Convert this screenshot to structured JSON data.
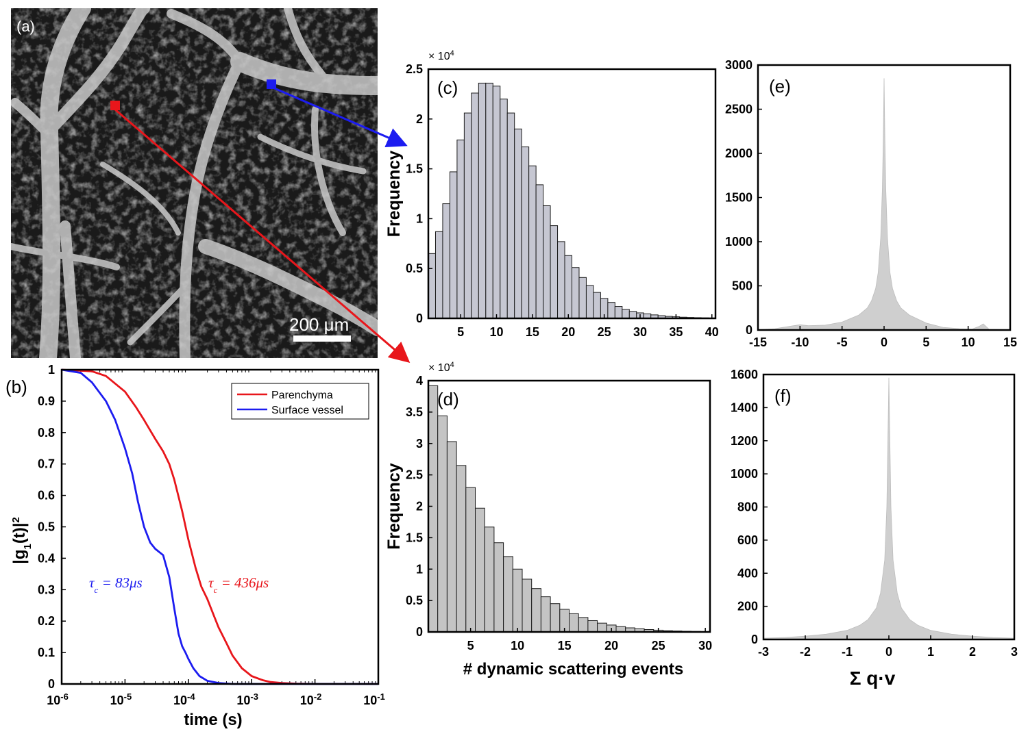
{
  "panels": {
    "a": {
      "label": "(a)",
      "scale_bar": "200 μm",
      "marker_colors": {
        "parenchyma": "#e8161b",
        "surface_vessel": "#1c1cf0"
      }
    }
  },
  "chart_data": [
    {
      "id": "b",
      "panel_label": "(b)",
      "type": "line",
      "xlabel": "time (s)",
      "ylabel": "|g1(t)|2",
      "xscale": "log",
      "xlim": [
        1e-06,
        0.1
      ],
      "ylim": [
        0,
        1
      ],
      "xticks": [
        "10-6",
        "10-5",
        "10-4",
        "10-3",
        "10-2",
        "10-1"
      ],
      "yticks": [
        "0",
        "0.1",
        "0.2",
        "0.3",
        "0.4",
        "0.5",
        "0.6",
        "0.7",
        "0.8",
        "0.9",
        "1"
      ],
      "legend_position": "top-right",
      "series": [
        {
          "name": "Parenchyma",
          "color": "#e8161b",
          "x": [
            1e-06,
            3e-06,
            5e-06,
            1e-05,
            1.5e-05,
            2e-05,
            3e-05,
            4e-05,
            5e-05,
            6e-05,
            8e-05,
            0.0001,
            0.00013,
            0.00016,
            0.0002,
            0.00025,
            0.0003,
            0.0004,
            0.0005,
            0.0007,
            0.001,
            0.0015,
            0.002,
            0.003,
            0.005,
            0.01,
            0.1
          ],
          "values": [
            1.0,
            0.995,
            0.98,
            0.93,
            0.88,
            0.84,
            0.78,
            0.74,
            0.7,
            0.65,
            0.55,
            0.46,
            0.37,
            0.31,
            0.27,
            0.22,
            0.18,
            0.13,
            0.09,
            0.05,
            0.025,
            0.012,
            0.006,
            0.003,
            0.001,
            0.0,
            0.0
          ]
        },
        {
          "name": "Surface vessel",
          "color": "#1c1cf0",
          "x": [
            1e-06,
            2e-06,
            3e-06,
            5e-06,
            7e-06,
            1e-05,
            1.3e-05,
            1.6e-05,
            2e-05,
            2.5e-05,
            3e-05,
            4e-05,
            5e-05,
            6e-05,
            7e-05,
            8e-05,
            9e-05,
            0.0001,
            0.00012,
            0.00015,
            0.0002,
            0.0003,
            0.0005,
            0.001,
            0.1
          ],
          "values": [
            1.0,
            0.99,
            0.96,
            0.9,
            0.84,
            0.75,
            0.67,
            0.58,
            0.5,
            0.45,
            0.43,
            0.41,
            0.34,
            0.24,
            0.16,
            0.12,
            0.1,
            0.08,
            0.05,
            0.025,
            0.01,
            0.003,
            0.0,
            0.0,
            0.0
          ]
        }
      ],
      "annotations": [
        {
          "tau": "τ",
          "sub": "c",
          "text": " = 83μs",
          "color": "#1c1cf0"
        },
        {
          "tau": "τ",
          "sub": "c",
          "text": " = 436μs",
          "color": "#e8161b"
        }
      ]
    },
    {
      "id": "c",
      "panel_label": "(c)",
      "type": "bar",
      "ylabel": "Frequency",
      "exponent_label": "× 10",
      "exponent": "4",
      "xlim": [
        0.5,
        40.5
      ],
      "ylim": [
        0,
        2.5
      ],
      "xticks": [
        "5",
        "10",
        "15",
        "20",
        "25",
        "30",
        "35",
        "40"
      ],
      "yticks": [
        "0",
        "0.5",
        "1",
        "1.5",
        "2",
        "2.5"
      ],
      "categories": [
        1,
        2,
        3,
        4,
        5,
        6,
        7,
        8,
        9,
        10,
        11,
        12,
        13,
        14,
        15,
        16,
        17,
        18,
        19,
        20,
        21,
        22,
        23,
        24,
        25,
        26,
        27,
        28,
        29,
        30,
        31,
        32,
        33,
        34,
        35,
        36,
        37,
        38,
        39,
        40
      ],
      "values": [
        0.65,
        0.87,
        1.15,
        1.47,
        1.79,
        2.06,
        2.26,
        2.36,
        2.36,
        2.33,
        2.2,
        2.06,
        1.9,
        1.72,
        1.53,
        1.34,
        1.13,
        0.93,
        0.77,
        0.63,
        0.51,
        0.41,
        0.33,
        0.26,
        0.2,
        0.16,
        0.12,
        0.09,
        0.07,
        0.055,
        0.045,
        0.035,
        0.027,
        0.02,
        0.016,
        0.012,
        0.009,
        0.007,
        0.005,
        0.004
      ]
    },
    {
      "id": "d",
      "panel_label": "(d)",
      "type": "bar",
      "xlabel": "# dynamic scattering events",
      "ylabel": "Frequency",
      "exponent_label": "× 10",
      "exponent": "4",
      "xlim": [
        0.5,
        30.5
      ],
      "ylim": [
        0,
        4
      ],
      "xticks": [
        "5",
        "10",
        "15",
        "20",
        "25",
        "30"
      ],
      "yticks": [
        "0",
        "0.5",
        "1",
        "1.5",
        "2",
        "2.5",
        "3",
        "3.5",
        "4"
      ],
      "categories": [
        1,
        2,
        3,
        4,
        5,
        6,
        7,
        8,
        9,
        10,
        11,
        12,
        13,
        14,
        15,
        16,
        17,
        18,
        19,
        20,
        21,
        22,
        23,
        24,
        25,
        26,
        27,
        28,
        29,
        30
      ],
      "values": [
        3.92,
        3.44,
        3.03,
        2.65,
        2.3,
        1.97,
        1.67,
        1.42,
        1.2,
        1.0,
        0.84,
        0.69,
        0.56,
        0.45,
        0.36,
        0.29,
        0.23,
        0.18,
        0.14,
        0.11,
        0.085,
        0.065,
        0.05,
        0.038,
        0.028,
        0.02,
        0.015,
        0.011,
        0.008,
        0.006
      ]
    },
    {
      "id": "e",
      "panel_label": "(e)",
      "type": "area",
      "xlim": [
        -15,
        15
      ],
      "ylim": [
        0,
        3000
      ],
      "xticks": [
        "-15",
        "-10",
        "-5",
        "0",
        "5",
        "10",
        "15"
      ],
      "yticks": [
        "0",
        "500",
        "1000",
        "1500",
        "2000",
        "2500",
        "3000"
      ],
      "x": [
        -15,
        -13,
        -11,
        -10,
        -9,
        -7,
        -5,
        -3,
        -2,
        -1.5,
        -1,
        -0.7,
        -0.4,
        -0.2,
        -0.1,
        0,
        0.1,
        0.2,
        0.4,
        0.7,
        1,
        1.5,
        2,
        3,
        5,
        7,
        9,
        10.5,
        11.3,
        11.8,
        12.5,
        15
      ],
      "values": [
        5,
        15,
        45,
        60,
        50,
        55,
        90,
        170,
        250,
        330,
        470,
        650,
        1050,
        1600,
        2150,
        2850,
        2150,
        1600,
        1050,
        650,
        470,
        330,
        250,
        170,
        80,
        30,
        15,
        12,
        40,
        70,
        8,
        3
      ]
    },
    {
      "id": "f",
      "panel_label": "(f)",
      "type": "area",
      "xlabel": "Σ q·v",
      "xlim": [
        -3,
        3
      ],
      "ylim": [
        0,
        1600
      ],
      "xticks": [
        "-3",
        "-2",
        "-1",
        "0",
        "1",
        "2",
        "3"
      ],
      "yticks": [
        "0",
        "200",
        "400",
        "600",
        "800",
        "1000",
        "1200",
        "1400",
        "1600"
      ],
      "x": [
        -3,
        -2.5,
        -2,
        -1.5,
        -1,
        -0.7,
        -0.5,
        -0.3,
        -0.2,
        -0.1,
        -0.05,
        0,
        0.05,
        0.1,
        0.2,
        0.3,
        0.5,
        0.7,
        1,
        1.5,
        2,
        2.5,
        3
      ],
      "values": [
        8,
        12,
        20,
        32,
        55,
        85,
        120,
        190,
        280,
        480,
        800,
        1580,
        800,
        480,
        280,
        190,
        120,
        85,
        55,
        32,
        20,
        12,
        8
      ]
    }
  ]
}
